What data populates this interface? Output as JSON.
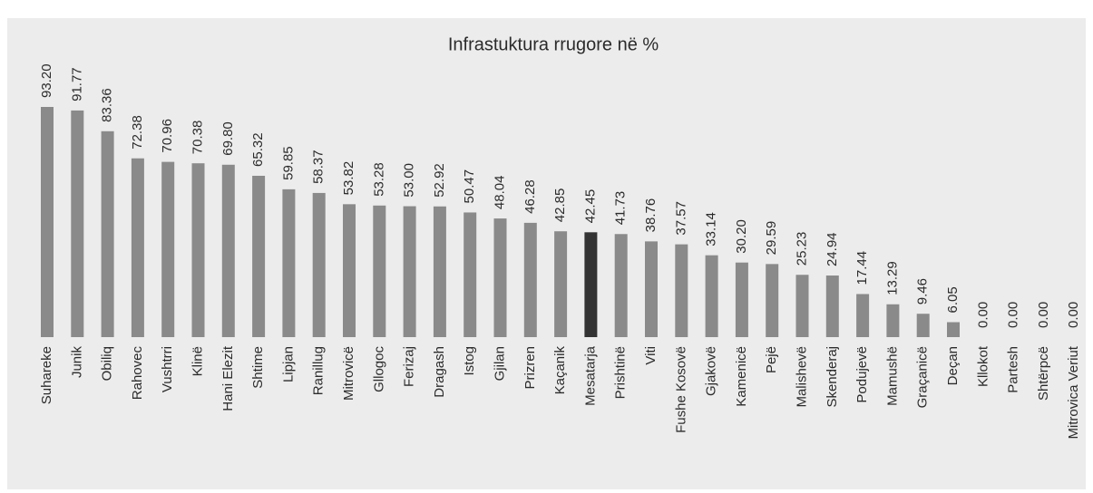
{
  "chart_data": {
    "type": "bar",
    "title": "Infrastuktura rrugore në %",
    "categories": [
      "Suhareke",
      "Junik",
      "Obiliq",
      "Rahovec",
      "Vushtrri",
      "Klinë",
      "Hani Elezit",
      "Shtime",
      "Lipjan",
      "Ranillug",
      "Mitrovicë",
      "Gllogoc",
      "Ferizaj",
      "Dragash",
      "Istog",
      "Gjilan",
      "Prizren",
      "Kaçanik",
      "Mesatarja",
      "Prishtinë",
      "Viti",
      "Fushe Kosovë",
      "Gjakovë",
      "Kamenicë",
      "Pejë",
      "Malishevë",
      "Skenderaj",
      "Podujevë",
      "Mamushë",
      "Graçanicë",
      "Deçan",
      "Kllokot",
      "Partesh",
      "Shtërpcë",
      "Mitrovica Veriut"
    ],
    "values": [
      93.2,
      91.77,
      83.36,
      72.38,
      70.96,
      70.38,
      69.8,
      65.32,
      59.85,
      58.37,
      53.82,
      53.28,
      53,
      52.92,
      50.47,
      48.04,
      46.28,
      42.85,
      42.45,
      41.73,
      38.76,
      37.57,
      33.14,
      30.2,
      29.59,
      25.23,
      24.94,
      17.44,
      13.29,
      9.46,
      6.05,
      0,
      0,
      0,
      0
    ],
    "value_labels": [
      "93.20",
      "91.77",
      "83.36",
      "72.38",
      "70.96",
      "70.38",
      "69.80",
      "65.32",
      "59.85",
      "58.37",
      "53.82",
      "53.28",
      "53.00",
      "52.92",
      "50.47",
      "48.04",
      "46.28",
      "42.85",
      "42.45",
      "41.73",
      "38.76",
      "37.57",
      "33.14",
      "30.20",
      "29.59",
      "25.23",
      "24.94",
      "17.44",
      "13.29",
      "9.46",
      "6.05",
      "0.00",
      "0.00",
      "0.00",
      "0.00"
    ],
    "colors": [
      "#8a8a8a",
      "#8a8a8a",
      "#8a8a8a",
      "#8a8a8a",
      "#8a8a8a",
      "#8a8a8a",
      "#8a8a8a",
      "#8a8a8a",
      "#8a8a8a",
      "#8a8a8a",
      "#8a8a8a",
      "#8a8a8a",
      "#8a8a8a",
      "#8a8a8a",
      "#8a8a8a",
      "#8a8a8a",
      "#8a8a8a",
      "#8a8a8a",
      "#333333",
      "#8a8a8a",
      "#8a8a8a",
      "#8a8a8a",
      "#8a8a8a",
      "#8a8a8a",
      "#8a8a8a",
      "#8a8a8a",
      "#8a8a8a",
      "#8a8a8a",
      "#8a8a8a",
      "#8a8a8a",
      "#8a8a8a",
      "#8a8a8a",
      "#8a8a8a",
      "#8a8a8a",
      "#8a8a8a"
    ]
  }
}
